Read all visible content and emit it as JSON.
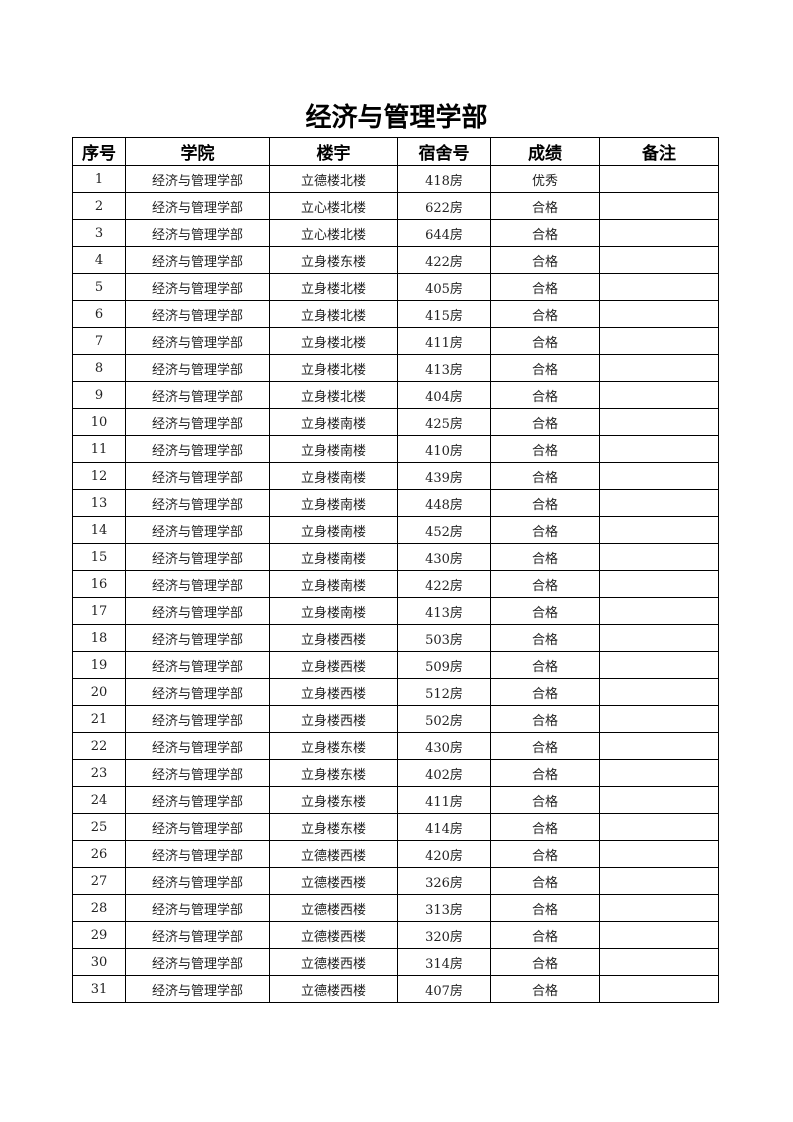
{
  "title": "经济与管理学部",
  "table": {
    "headers": [
      "序号",
      "学院",
      "楼宇",
      "宿舍号",
      "成绩",
      "备注"
    ],
    "rows": [
      [
        "1",
        "经济与管理学部",
        "立德楼北楼",
        "418房",
        "优秀",
        ""
      ],
      [
        "2",
        "经济与管理学部",
        "立心楼北楼",
        "622房",
        "合格",
        ""
      ],
      [
        "3",
        "经济与管理学部",
        "立心楼北楼",
        "644房",
        "合格",
        ""
      ],
      [
        "4",
        "经济与管理学部",
        "立身楼东楼",
        "422房",
        "合格",
        ""
      ],
      [
        "5",
        "经济与管理学部",
        "立身楼北楼",
        "405房",
        "合格",
        ""
      ],
      [
        "6",
        "经济与管理学部",
        "立身楼北楼",
        "415房",
        "合格",
        ""
      ],
      [
        "7",
        "经济与管理学部",
        "立身楼北楼",
        "411房",
        "合格",
        ""
      ],
      [
        "8",
        "经济与管理学部",
        "立身楼北楼",
        "413房",
        "合格",
        ""
      ],
      [
        "9",
        "经济与管理学部",
        "立身楼北楼",
        "404房",
        "合格",
        ""
      ],
      [
        "10",
        "经济与管理学部",
        "立身楼南楼",
        "425房",
        "合格",
        ""
      ],
      [
        "11",
        "经济与管理学部",
        "立身楼南楼",
        "410房",
        "合格",
        ""
      ],
      [
        "12",
        "经济与管理学部",
        "立身楼南楼",
        "439房",
        "合格",
        ""
      ],
      [
        "13",
        "经济与管理学部",
        "立身楼南楼",
        "448房",
        "合格",
        ""
      ],
      [
        "14",
        "经济与管理学部",
        "立身楼南楼",
        "452房",
        "合格",
        ""
      ],
      [
        "15",
        "经济与管理学部",
        "立身楼南楼",
        "430房",
        "合格",
        ""
      ],
      [
        "16",
        "经济与管理学部",
        "立身楼南楼",
        "422房",
        "合格",
        ""
      ],
      [
        "17",
        "经济与管理学部",
        "立身楼南楼",
        "413房",
        "合格",
        ""
      ],
      [
        "18",
        "经济与管理学部",
        "立身楼西楼",
        "503房",
        "合格",
        ""
      ],
      [
        "19",
        "经济与管理学部",
        "立身楼西楼",
        "509房",
        "合格",
        ""
      ],
      [
        "20",
        "经济与管理学部",
        "立身楼西楼",
        "512房",
        "合格",
        ""
      ],
      [
        "21",
        "经济与管理学部",
        "立身楼西楼",
        "502房",
        "合格",
        ""
      ],
      [
        "22",
        "经济与管理学部",
        "立身楼东楼",
        "430房",
        "合格",
        ""
      ],
      [
        "23",
        "经济与管理学部",
        "立身楼东楼",
        "402房",
        "合格",
        ""
      ],
      [
        "24",
        "经济与管理学部",
        "立身楼东楼",
        "411房",
        "合格",
        ""
      ],
      [
        "25",
        "经济与管理学部",
        "立身楼东楼",
        "414房",
        "合格",
        ""
      ],
      [
        "26",
        "经济与管理学部",
        "立德楼西楼",
        "420房",
        "合格",
        ""
      ],
      [
        "27",
        "经济与管理学部",
        "立德楼西楼",
        "326房",
        "合格",
        ""
      ],
      [
        "28",
        "经济与管理学部",
        "立德楼西楼",
        "313房",
        "合格",
        ""
      ],
      [
        "29",
        "经济与管理学部",
        "立德楼西楼",
        "320房",
        "合格",
        ""
      ],
      [
        "30",
        "经济与管理学部",
        "立德楼西楼",
        "314房",
        "合格",
        ""
      ],
      [
        "31",
        "经济与管理学部",
        "立德楼西楼",
        "407房",
        "合格",
        ""
      ]
    ]
  }
}
